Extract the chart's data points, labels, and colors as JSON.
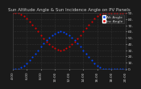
{
  "title": "Sun Altitude Angle & Sun Incidence Angle on PV Panels",
  "legend_labels": [
    "Alt Angle",
    "Inc Angle"
  ],
  "legend_colors": [
    "#0044ff",
    "#dd0000"
  ],
  "bg_color": "#1a1a1a",
  "plot_bg": "#1a1a1a",
  "grid_color": "#444444",
  "text_color": "#cccccc",
  "title_color": "#cccccc",
  "blue_x": [
    0,
    1,
    2,
    3,
    4,
    5,
    6,
    7,
    8,
    9,
    10,
    11,
    12,
    13,
    14,
    15,
    16,
    17,
    18,
    19,
    20,
    21,
    22,
    23,
    24,
    25,
    26,
    27,
    28,
    29,
    30,
    31,
    32,
    33,
    34,
    35,
    36,
    37,
    38,
    39,
    40
  ],
  "blue_y": [
    0,
    0,
    0,
    2,
    5,
    9,
    14,
    19,
    24,
    30,
    36,
    41,
    46,
    50,
    54,
    57,
    59,
    60,
    59,
    57,
    54,
    50,
    46,
    41,
    36,
    30,
    24,
    19,
    14,
    9,
    5,
    2,
    0,
    0,
    0,
    0,
    0,
    0,
    0,
    0,
    0
  ],
  "red_x": [
    0,
    1,
    2,
    3,
    4,
    5,
    6,
    7,
    8,
    9,
    10,
    11,
    12,
    13,
    14,
    15,
    16,
    17,
    18,
    19,
    20,
    21,
    22,
    23,
    24,
    25,
    26,
    27,
    28,
    29,
    30,
    31,
    32,
    33,
    34,
    35,
    36,
    37,
    38,
    39,
    40
  ],
  "red_y": [
    90,
    90,
    90,
    88,
    85,
    81,
    76,
    71,
    66,
    60,
    54,
    49,
    44,
    40,
    36,
    33,
    31,
    30,
    31,
    33,
    36,
    40,
    44,
    49,
    54,
    60,
    66,
    71,
    76,
    81,
    85,
    88,
    90,
    90,
    90,
    90,
    90,
    90,
    90,
    90,
    90
  ],
  "xlim": [
    0,
    40
  ],
  "ylim": [
    0,
    90
  ],
  "ytick_positions": [
    0,
    10,
    20,
    30,
    40,
    50,
    60,
    70,
    80,
    90
  ],
  "ytick_labels": [
    "0.",
    "10.",
    "20.",
    "30.",
    "40.",
    "50.",
    "60.",
    "70.",
    "80.",
    "90."
  ],
  "xtick_positions": [
    0,
    5,
    10,
    15,
    20,
    25,
    30,
    35,
    40
  ],
  "xtick_labels": [
    "4:00",
    "6:00",
    "8:00",
    "10:00",
    "12:00",
    "14:00",
    "16:00",
    "18:00",
    "20:00"
  ],
  "title_fontsize": 4.0,
  "tick_fontsize": 3.2,
  "legend_fontsize": 3.2,
  "marker_size": 1.5
}
